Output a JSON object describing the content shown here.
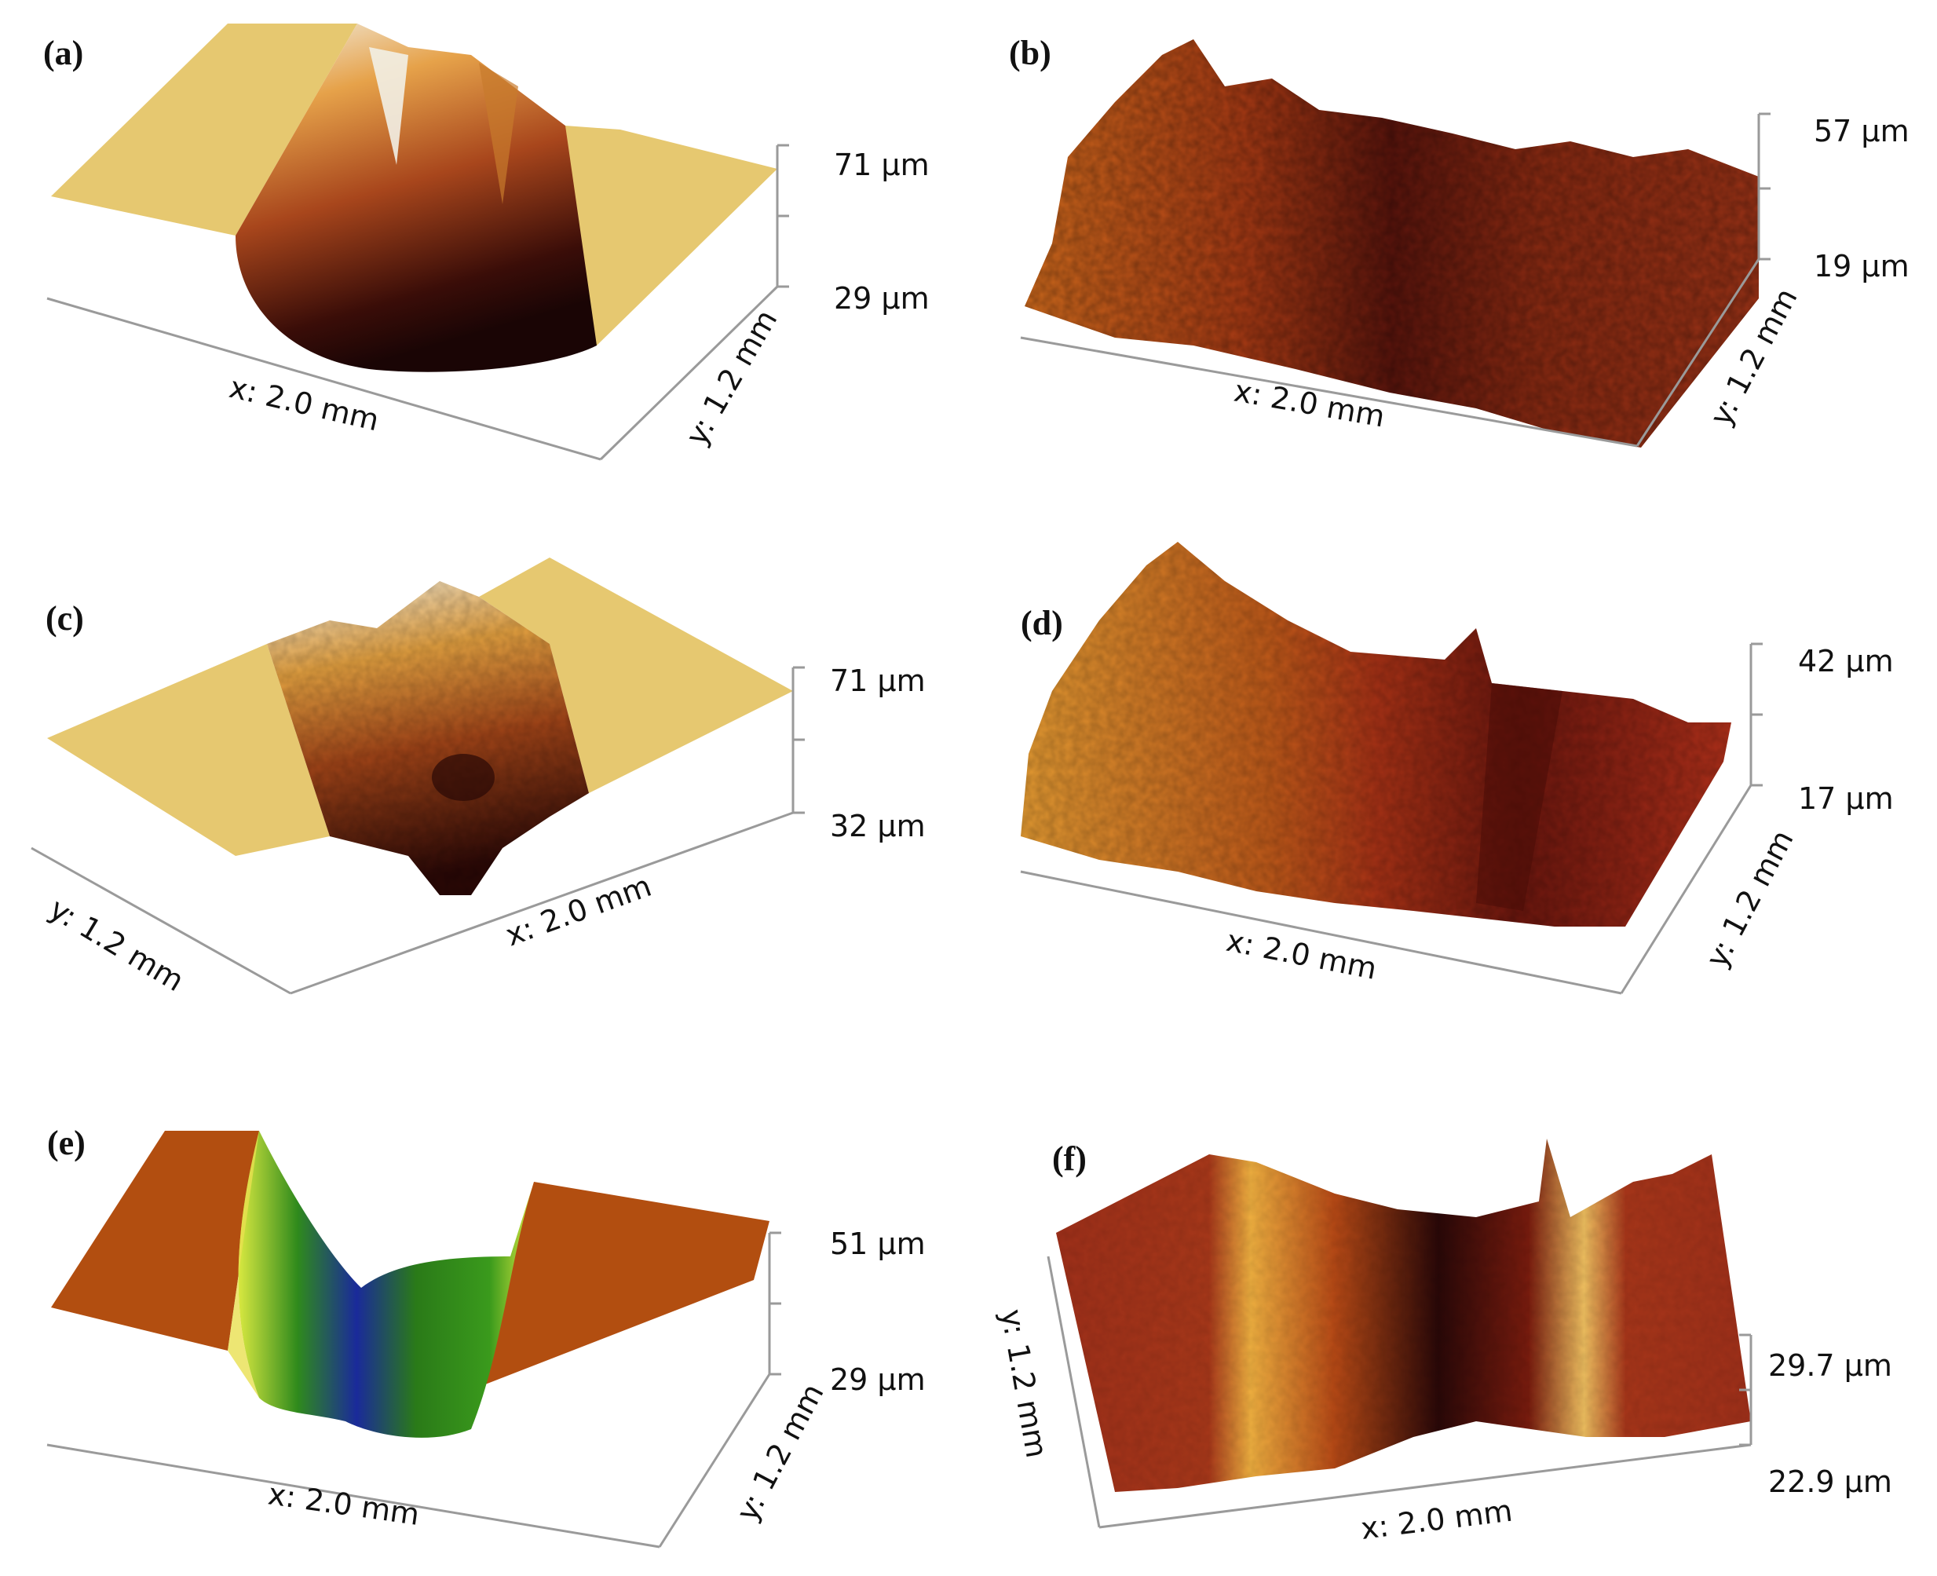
{
  "panels": [
    {
      "id": "a",
      "label": "(a)",
      "z_top": "71 µm",
      "z_bottom": "29 µm",
      "x_label": "x: 2.0 mm",
      "y_label": "y: 1.2 mm",
      "colormap": "gold-brown"
    },
    {
      "id": "b",
      "label": "(b)",
      "z_top": "57 µm",
      "z_bottom": "19 µm",
      "x_label": "x: 2.0 mm",
      "y_label": "y: 1.2 mm",
      "colormap": "gold-brown"
    },
    {
      "id": "c",
      "label": "(c)",
      "z_top": "71 µm",
      "z_bottom": "32 µm",
      "x_label": "x: 2.0 mm",
      "y_label": "y: 1.2 mm",
      "colormap": "gold-brown"
    },
    {
      "id": "d",
      "label": "(d)",
      "z_top": "42 µm",
      "z_bottom": "17 µm",
      "x_label": "x: 2.0 mm",
      "y_label": "y: 1.2 mm",
      "colormap": "gold-brown"
    },
    {
      "id": "e",
      "label": "(e)",
      "z_top": "51 µm",
      "z_bottom": "29 µm",
      "x_label": "x: 2.0 mm",
      "y_label": "y: 1.2 mm",
      "colormap": "brown-green-blue"
    },
    {
      "id": "f",
      "label": "(f)",
      "z_top": "29.7 µm",
      "z_bottom": "22.9 µm",
      "x_label": "x: 2.0 mm",
      "y_label": "y: 1.2 mm",
      "colormap": "gold-brown"
    }
  ]
}
